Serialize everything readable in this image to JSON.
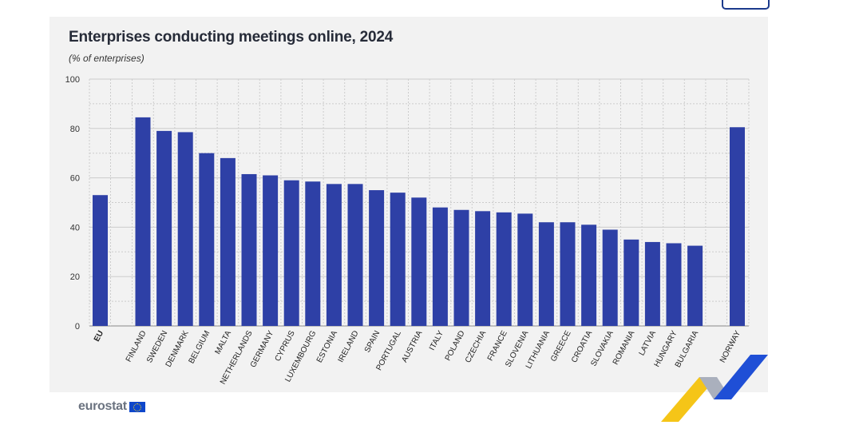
{
  "colors": {
    "bar": "#2e40a6",
    "panel": "#f2f2f2",
    "grid": "#cccccc",
    "accent_yellow": "#f5c518",
    "accent_blue": "#1f4fd6"
  },
  "logo": {
    "text": "eurostat",
    "icon": "eu-flag-icon"
  },
  "chart_data": {
    "type": "bar",
    "title": "Enterprises conducting meetings online, 2024",
    "subtitle": "(% of enterprises)",
    "xlabel": "",
    "ylabel": "",
    "ylim": [
      0,
      100
    ],
    "yticks": [
      0,
      20,
      40,
      60,
      80,
      100
    ],
    "grid": true,
    "categories": [
      "EU",
      "FINLAND",
      "SWEDEN",
      "DENMARK",
      "BELGIUM",
      "MALTA",
      "NETHERLANDS",
      "GERMANY",
      "CYPRUS",
      "LUXEMBOURG",
      "ESTONIA",
      "IRELAND",
      "SPAIN",
      "PORTUGAL",
      "AUSTRIA",
      "ITALY",
      "POLAND",
      "CZECHIA",
      "FRANCE",
      "SLOVENIA",
      "LITHUANIA",
      "GREECE",
      "CROATIA",
      "SLOVAKIA",
      "ROMANIA",
      "LATVIA",
      "HUNGARY",
      "BULGARIA",
      "NORWAY"
    ],
    "values": [
      53,
      84.5,
      79,
      78.5,
      70,
      68,
      61.5,
      61,
      59,
      58.5,
      57.5,
      57.5,
      55,
      54,
      52,
      48,
      47,
      46.5,
      46,
      45.5,
      42,
      42,
      41,
      39,
      35,
      34,
      33.5,
      32.5,
      80.5
    ]
  }
}
